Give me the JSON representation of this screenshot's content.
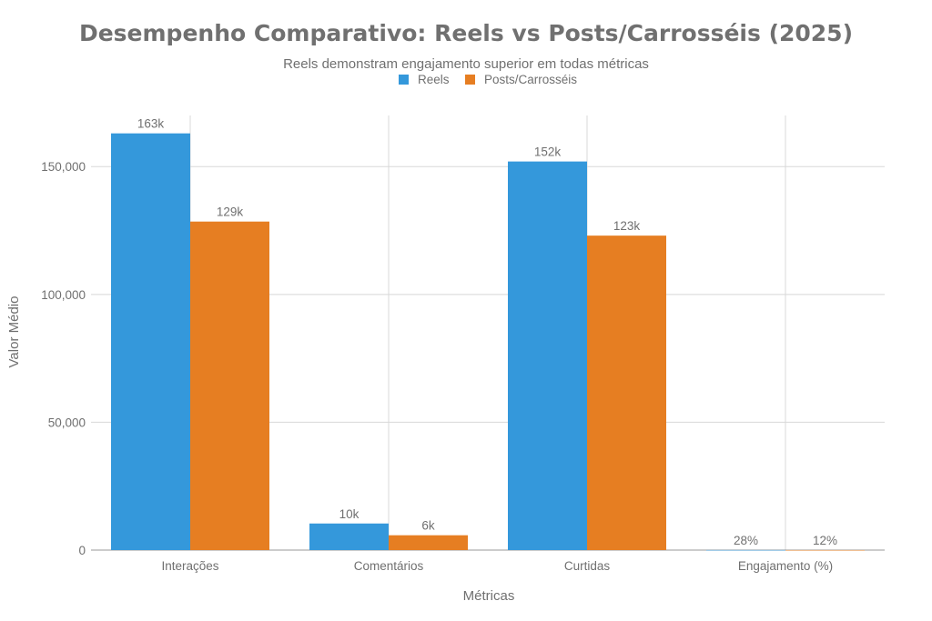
{
  "chart_data": {
    "type": "bar",
    "title": "Desempenho Comparativo: Reels vs Posts/Carrosséis (2025)",
    "subtitle": "Reels demonstram engajamento superior em todas métricas",
    "xlabel": "Métricas",
    "ylabel": "Valor Médio",
    "categories": [
      "Interações",
      "Comentários",
      "Curtidas",
      "Engajamento (%)"
    ],
    "series": [
      {
        "name": "Reels",
        "color": "#3498db",
        "values": [
          163000,
          10400,
          152000,
          28
        ],
        "labels": [
          "163k",
          "10k",
          "152k",
          "28%"
        ]
      },
      {
        "name": "Posts/Carrosséis",
        "color": "#e67e22",
        "values": [
          128500,
          5800,
          123000,
          12
        ],
        "labels": [
          "129k",
          "6k",
          "123k",
          "12%"
        ]
      }
    ],
    "ylim": [
      0,
      170000
    ],
    "yticks": [
      0,
      50000,
      100000,
      150000
    ],
    "ytick_labels": [
      "0",
      "50,000",
      "100,000",
      "150,000"
    ],
    "grid": true,
    "legend": "top-center"
  }
}
